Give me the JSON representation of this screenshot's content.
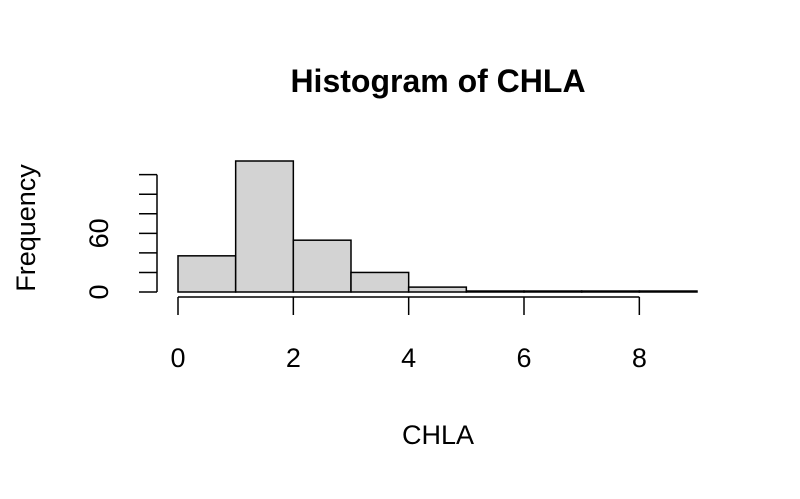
{
  "chart_data": {
    "type": "bar",
    "title": "Histogram of CHLA",
    "xlabel": "CHLA",
    "ylabel": "Frequency",
    "bins": [
      [
        0,
        1
      ],
      [
        1,
        2
      ],
      [
        2,
        3
      ],
      [
        3,
        4
      ],
      [
        4,
        5
      ],
      [
        5,
        6
      ],
      [
        6,
        7
      ],
      [
        7,
        8
      ],
      [
        8,
        9
      ]
    ],
    "values": [
      37,
      134,
      53,
      20,
      5,
      1,
      1,
      1,
      1
    ],
    "xlim": [
      0,
      9
    ],
    "ylim": [
      0,
      134
    ],
    "x_ticks": [
      0,
      2,
      4,
      6,
      8
    ],
    "y_ticks": [
      0,
      20,
      40,
      60,
      80,
      100,
      120
    ],
    "y_tick_labels": [
      "0",
      "",
      "",
      "60",
      "",
      "",
      ""
    ],
    "bar_fill": "#d3d3d3",
    "bar_stroke": "#000000",
    "grid": false
  }
}
